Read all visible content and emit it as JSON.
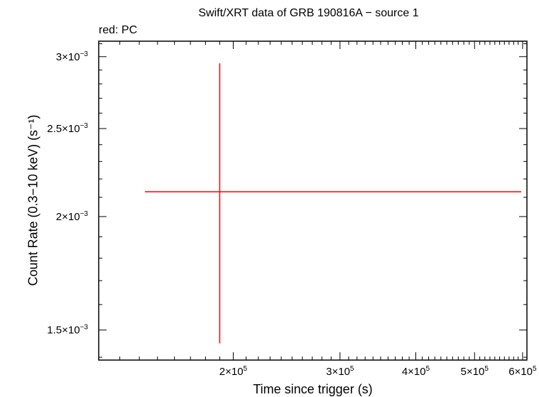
{
  "chart_data": {
    "type": "scatter",
    "title": "Swift/XRT data of GRB 190816A − source 1",
    "subtitle": "red: PC",
    "xlabel": "Time since trigger (s)",
    "ylabel": "Count Rate (0.3−10 keV) (s⁻¹)",
    "xscale": "log",
    "yscale": "log",
    "xlim": [
      120000,
      610000
    ],
    "ylim": [
      0.00139,
      0.00312
    ],
    "xticks": [
      {
        "value": 200000,
        "mant": "2×10",
        "exp": "5"
      },
      {
        "value": 300000,
        "mant": "3×10",
        "exp": "5"
      },
      {
        "value": 400000,
        "mant": "4×10",
        "exp": "5"
      },
      {
        "value": 500000,
        "mant": "5×10",
        "exp": "5"
      },
      {
        "value": 600000,
        "mant": "6×10",
        "exp": "5"
      }
    ],
    "yticks": [
      {
        "value": 0.0015,
        "mant": "1.5×10",
        "exp": "−3"
      },
      {
        "value": 0.002,
        "mant": "2×10",
        "exp": "−3"
      },
      {
        "value": 0.0025,
        "mant": "2.5×10",
        "exp": "−3"
      },
      {
        "value": 0.003,
        "mant": "3×10",
        "exp": "−3"
      }
    ],
    "series": [
      {
        "name": "PC",
        "color": "#ff0000",
        "points": [
          {
            "x": 190000,
            "xerr_low": 143000,
            "xerr_high": 597000,
            "y": 0.00213,
            "yerr_low": 0.00145,
            "yerr_high": 0.00295
          }
        ]
      }
    ]
  }
}
